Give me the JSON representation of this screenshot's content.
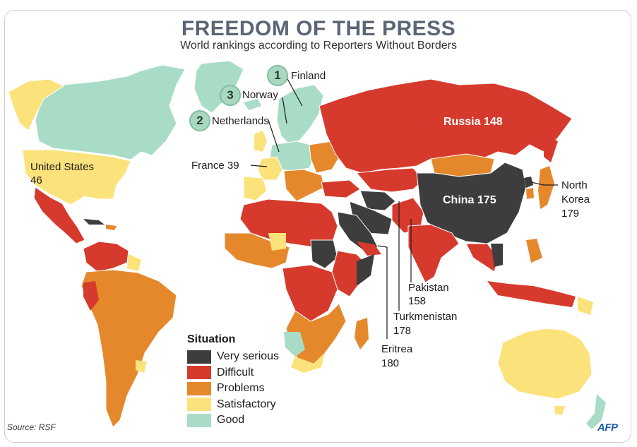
{
  "title": "FREEDOM OF THE PRESS",
  "subtitle": "World rankings according to Reporters Without Borders",
  "colors": {
    "very_serious": "#3d3d3d",
    "difficult": "#d63a2c",
    "problems": "#e5882c",
    "satisfactory": "#fbe27a",
    "good": "#a8dcc7"
  },
  "rank_badges": [
    {
      "rank": "1",
      "country": "Finland"
    },
    {
      "rank": "3",
      "country": "Norway"
    },
    {
      "rank": "2",
      "country": "Netherlands"
    }
  ],
  "country_labels": {
    "russia": "Russia 148",
    "china": "China 175",
    "united_states": "United States",
    "united_states_rank": "46",
    "france": "France 39",
    "north_korea_1": "North",
    "north_korea_2": "Korea",
    "north_korea_rank": "179",
    "pakistan": "Pakistan",
    "pakistan_rank": "158",
    "turkmenistan": "Turkmenistan",
    "turkmenistan_rank": "178",
    "eritrea": "Eritrea",
    "eritrea_rank": "180"
  },
  "legend": {
    "title": "Situation",
    "items": [
      {
        "label": "Very serious",
        "color": "#3d3d3d"
      },
      {
        "label": "Difficult",
        "color": "#d63a2c"
      },
      {
        "label": "Problems",
        "color": "#e5882c"
      },
      {
        "label": "Satisfactory",
        "color": "#fbe27a"
      },
      {
        "label": "Good",
        "color": "#a8dcc7"
      }
    ]
  },
  "source": "Source: RSF",
  "credit": "AFP"
}
